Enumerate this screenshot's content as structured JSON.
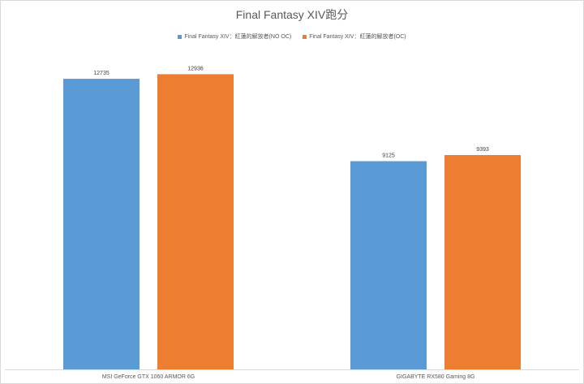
{
  "chart_data": {
    "type": "bar",
    "title": "Final Fantasy XIV跑分",
    "xlabel": "",
    "ylabel": "",
    "categories": [
      "MSI GeForce GTX 1060 ARMOR 6G",
      "GIGABYTE RX580 Gaming 8G"
    ],
    "series": [
      {
        "name": "Final Fantasy XIV：紅蓮的解放者(NO OC)",
        "color": "#5b9bd5",
        "values": [
          12735,
          9125
        ]
      },
      {
        "name": "Final Fantasy XIV：紅蓮的解放者(OC)",
        "color": "#ed7d31",
        "values": [
          12936,
          9393
        ]
      }
    ],
    "ylim": [
      0,
      14000
    ],
    "grid": false,
    "data_labels": true,
    "legend_position": "top"
  }
}
